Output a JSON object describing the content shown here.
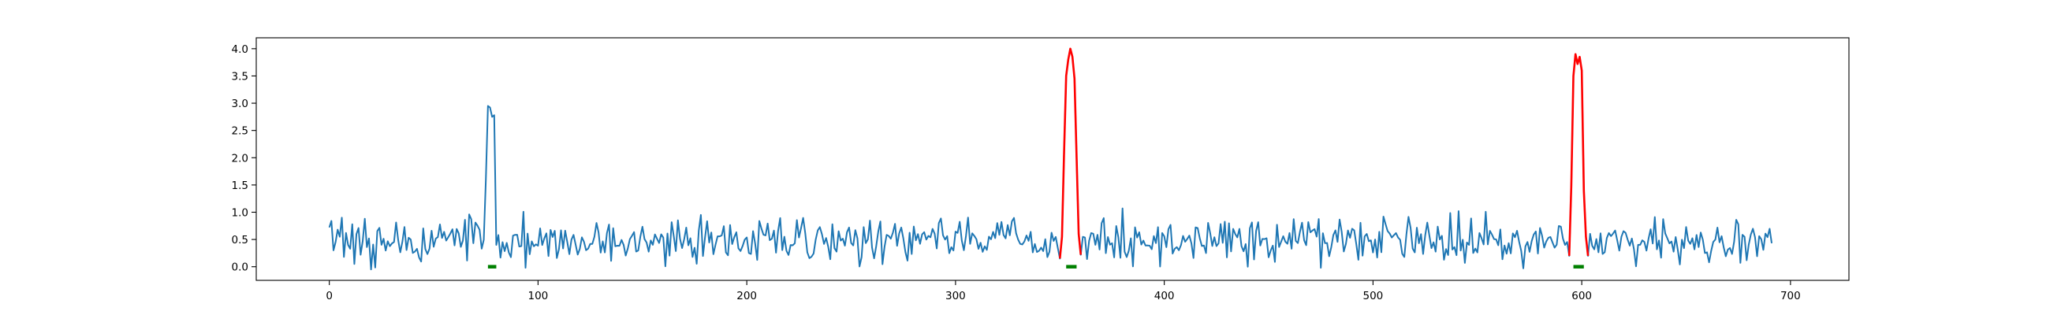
{
  "chart_data": {
    "type": "line",
    "title": "",
    "xlabel": "",
    "ylabel": "",
    "xlim": [
      -35,
      728
    ],
    "ylim": [
      -0.25,
      4.2
    ],
    "x_ticks": [
      0,
      100,
      200,
      300,
      400,
      500,
      600,
      700
    ],
    "x_tick_labels": [
      "0",
      "100",
      "200",
      "300",
      "400",
      "500",
      "600",
      "700"
    ],
    "y_ticks": [
      0.0,
      0.5,
      1.0,
      1.5,
      2.0,
      2.5,
      3.0,
      3.5,
      4.0
    ],
    "y_tick_labels": [
      "0.0",
      "0.5",
      "1.0",
      "1.5",
      "2.0",
      "2.5",
      "3.0",
      "3.5",
      "4.0"
    ],
    "grid": false,
    "legend": "none",
    "n_points": 692,
    "colors": {
      "signal": "#1f77b4",
      "highlight": "#ff0000",
      "marker": "#008000"
    },
    "series": [
      {
        "color": "#1f77b4",
        "x_range": [
          0,
          691
        ],
        "baseline": "noisy, mostly between 0.0 and 1.0, mean about 0.5",
        "values_sample": [
          0.72,
          0.84,
          0.3,
          0.45,
          0.68,
          0.55,
          0.9,
          0.18,
          0.62,
          0.4,
          0.33,
          0.78,
          0.05,
          0.6,
          0.71,
          0.22,
          0.47,
          0.88,
          0.36,
          0.52
        ]
      },
      {
        "color": "#ff0000",
        "segments": [
          {
            "x": [
              350,
              351,
              352,
              353,
              354,
              355,
              356,
              357,
              358,
              359,
              360
            ],
            "y": [
              0.15,
              0.55,
              2.1,
              3.5,
              3.8,
              4.0,
              3.85,
              3.45,
              2.0,
              0.6,
              0.22
            ]
          },
          {
            "x": [
              594,
              595,
              596,
              597,
              598,
              599,
              600,
              601,
              602,
              603
            ],
            "y": [
              0.2,
              1.5,
              3.5,
              3.9,
              3.72,
              3.85,
              3.6,
              1.4,
              0.55,
              0.2
            ]
          }
        ]
      }
    ],
    "blue_peak": {
      "x": [
        75,
        76,
        77,
        78,
        79,
        80
      ],
      "y": [
        1.6,
        2.95,
        2.92,
        2.75,
        2.78,
        0.4
      ]
    },
    "markers": [
      {
        "x_start": 76,
        "x_end": 80,
        "y": 0.0
      },
      {
        "x_start": 353,
        "x_end": 358,
        "y": 0.0
      },
      {
        "x_start": 596,
        "x_end": 601,
        "y": 0.0
      }
    ]
  }
}
